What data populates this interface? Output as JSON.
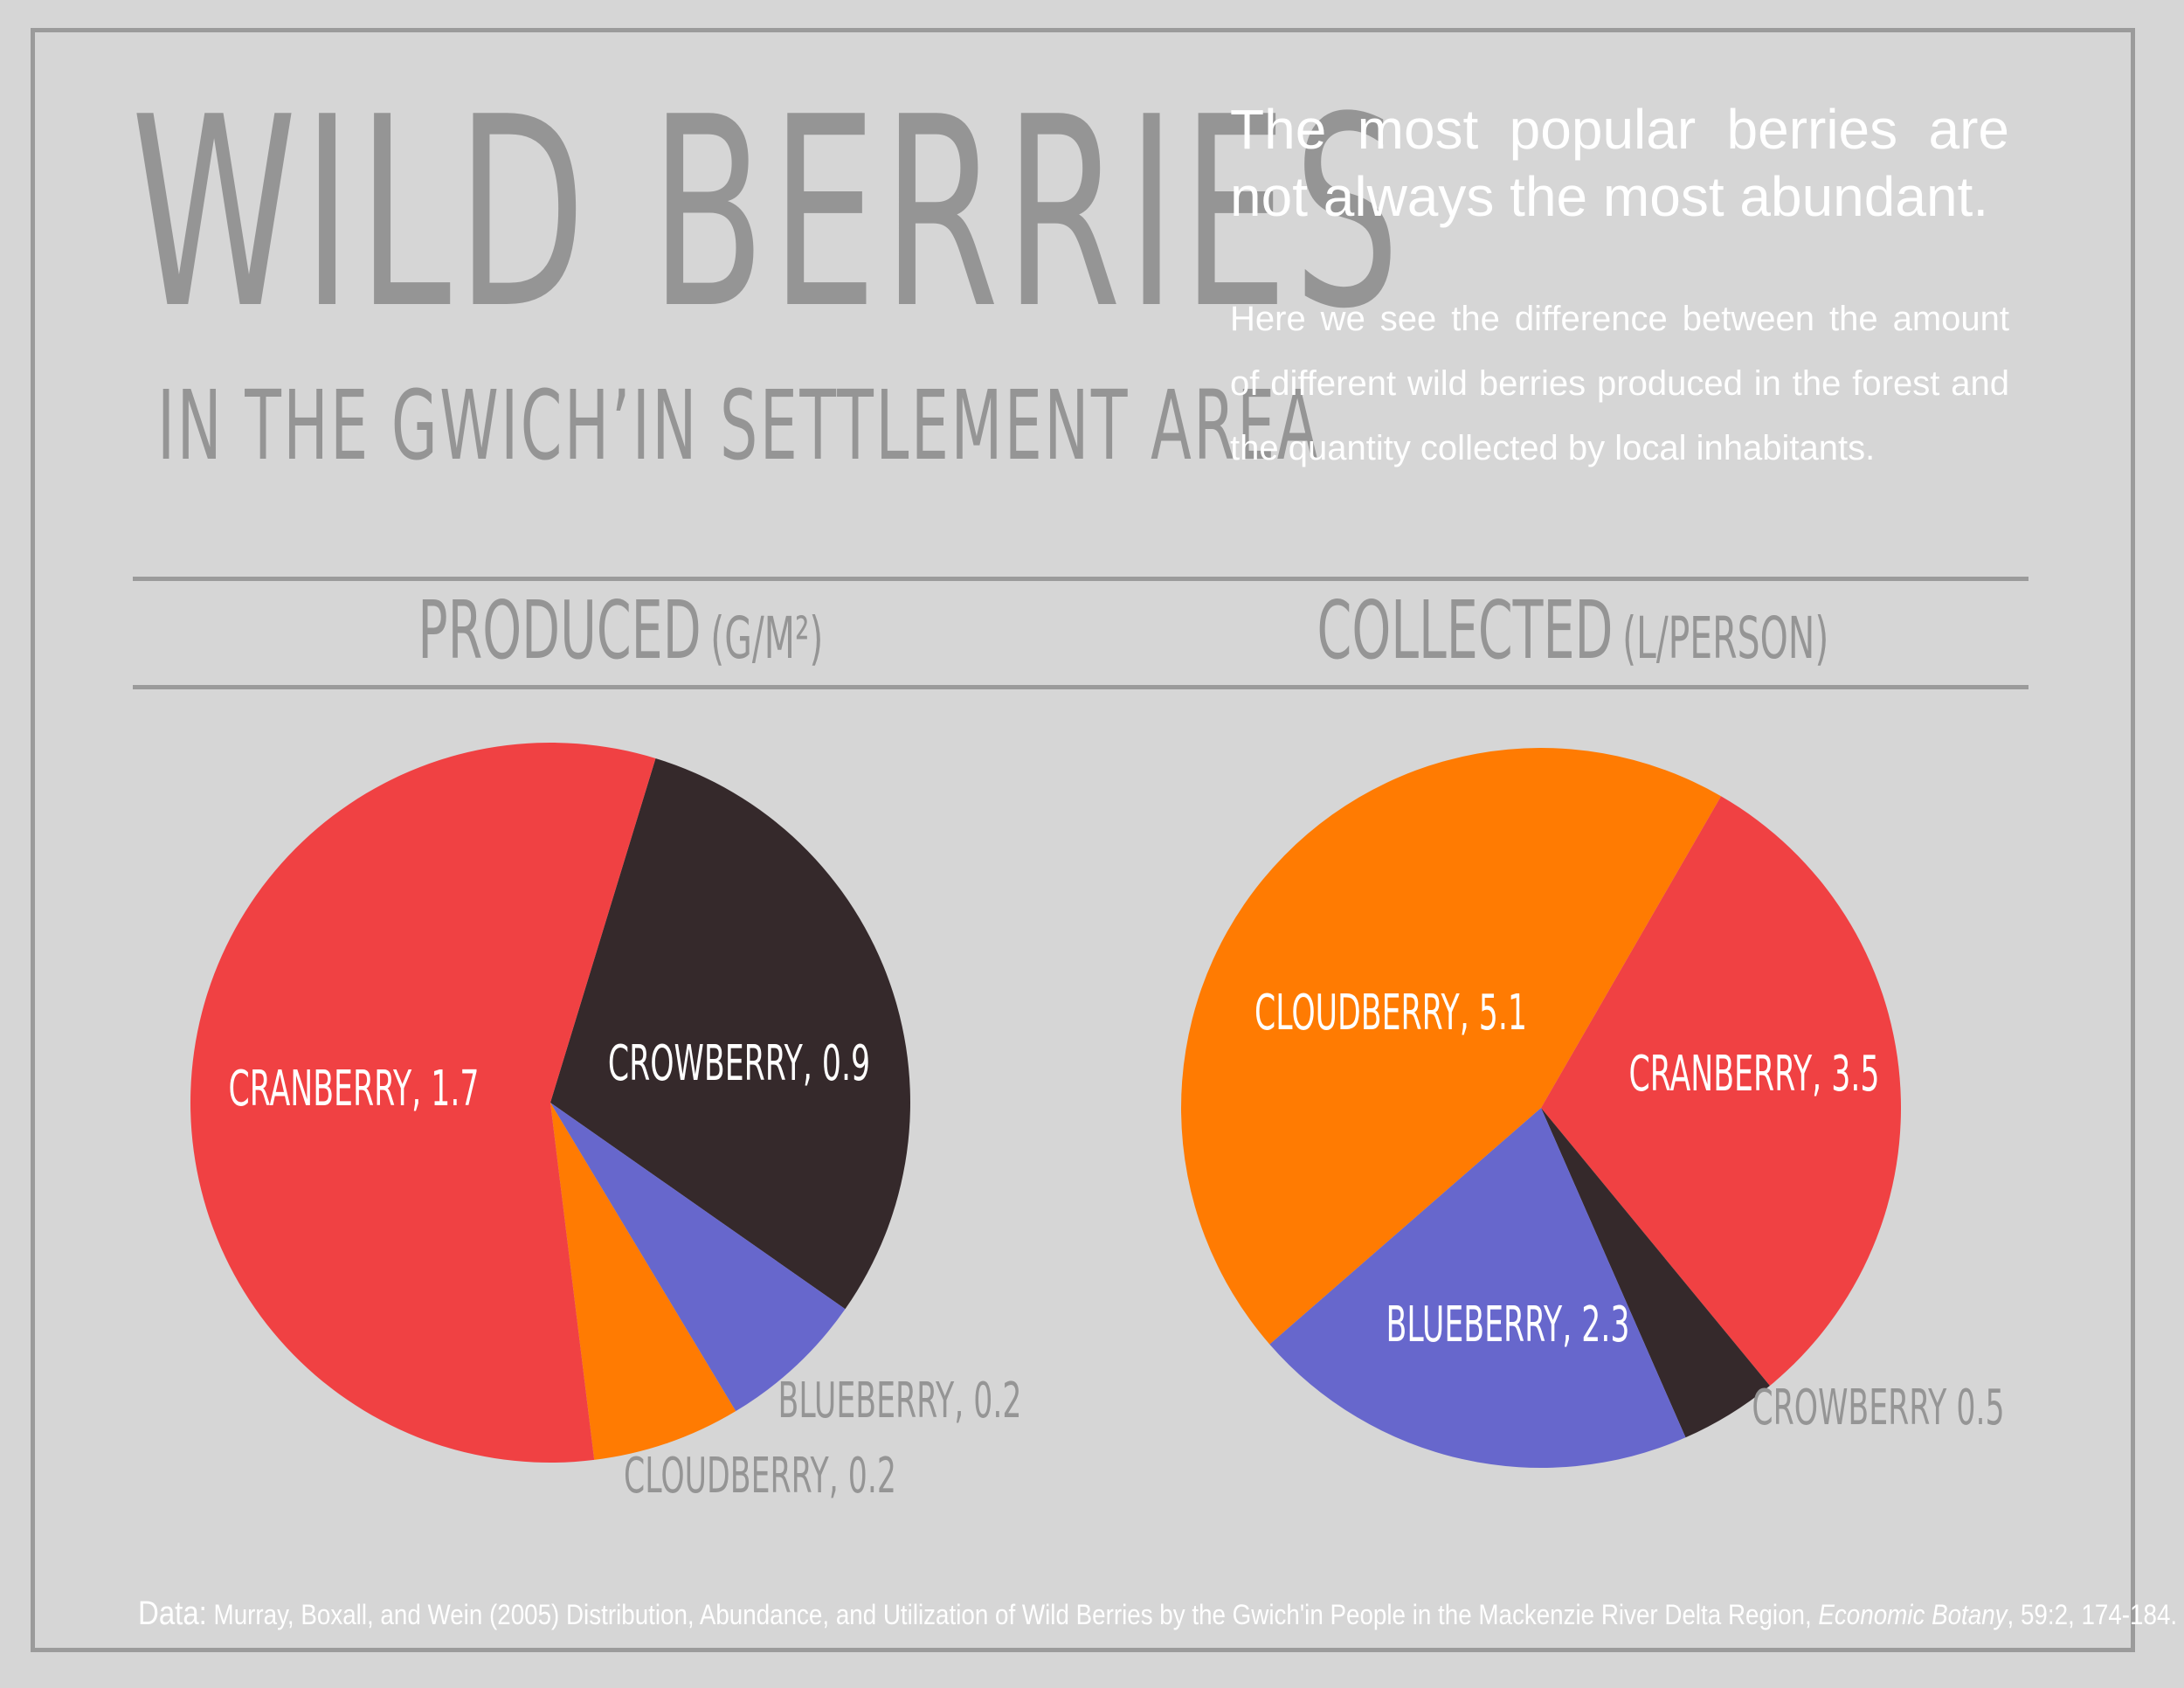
{
  "header": {
    "title": "WILD BERRIES",
    "subtitle": "IN THE GWICH’IN SETTLEMENT AREA"
  },
  "intro": {
    "lead": "The most popular berries are not always the most abundant.",
    "body": "Here we see the difference between the amount of different wild berries produced in the forest and the quantity collected by local inhabitants."
  },
  "sections": {
    "produced": {
      "main": "PRODUCED",
      "unit": "(G/M²)"
    },
    "collected": {
      "main": "COLLECTED",
      "unit": "(L/PERSON)"
    }
  },
  "colors": {
    "cranberry": "#f04143",
    "crowberry": "#35292b",
    "blueberry": "#6767cc",
    "cloudberry": "#ff7b02",
    "label_inside": "#ffffff",
    "label_outside": "#959595"
  },
  "chart_data": [
    {
      "type": "pie",
      "title": "PRODUCED (G/M²)",
      "unit": "g/m²",
      "slices": [
        {
          "name": "CRANBERRY",
          "value": 1.7,
          "label": "CRANBERRY, 1.7",
          "color": "#f04143",
          "label_inside": true
        },
        {
          "name": "CROWBERRY",
          "value": 0.9,
          "label": "CROWBERRY, 0.9",
          "color": "#35292b",
          "label_inside": true
        },
        {
          "name": "BLUEBERRY",
          "value": 0.2,
          "label": "BLUEBERRY, 0.2",
          "color": "#6767cc",
          "label_inside": false
        },
        {
          "name": "CLOUDBERRY",
          "value": 0.2,
          "label": "CLOUDBERRY, 0.2",
          "color": "#ff7b02",
          "label_inside": false
        }
      ]
    },
    {
      "type": "pie",
      "title": "COLLECTED (L/PERSON)",
      "unit": "L/person",
      "slices": [
        {
          "name": "CRANBERRY",
          "value": 3.5,
          "label": "CRANBERRY, 3.5",
          "color": "#f04143",
          "label_inside": true
        },
        {
          "name": "CROWBERRY",
          "value": 0.5,
          "label": "CROWBERRY 0.5",
          "color": "#35292b",
          "label_inside": false
        },
        {
          "name": "BLUEBERRY",
          "value": 2.3,
          "label": "BLUEBERRY, 2.3",
          "color": "#6767cc",
          "label_inside": true
        },
        {
          "name": "CLOUDBERRY",
          "value": 5.1,
          "label": "CLOUDBERRY, 5.1",
          "color": "#ff7b02",
          "label_inside": true
        }
      ]
    }
  ],
  "footer": {
    "label": "Data:",
    "citation": "Murray, Boxall, and Wein (2005) Distribution, Abundance, and Utilization of Wild Berries by the Gwich'in People in the Mackenzie River Delta Region,",
    "journal": "Economic Botany",
    "details": ", 59:2, 174-184."
  }
}
